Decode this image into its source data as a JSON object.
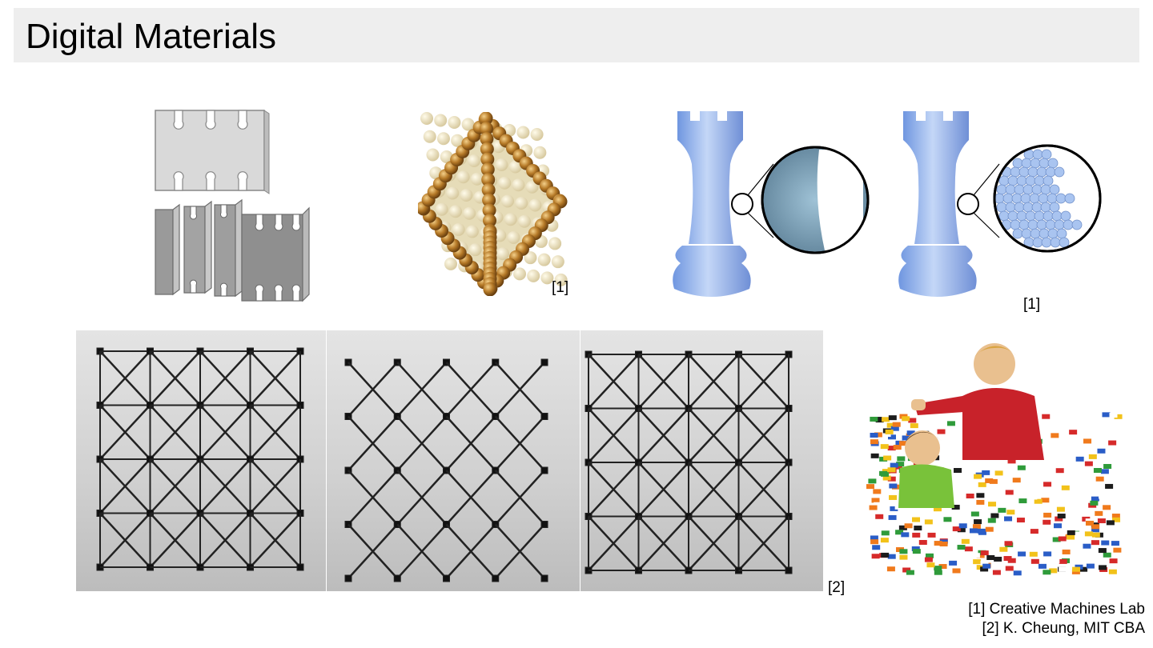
{
  "slide": {
    "title": "Digital Materials"
  },
  "figure_refs": {
    "octahedron": "[1]",
    "rook": "[1]",
    "lattice": "[2]"
  },
  "credits": [
    "[1] Creative Machines Lab",
    "[2] K. Cheung, MIT CBA"
  ],
  "colors": {
    "title_bar": "#eeeeee",
    "bead_gold": "#b67a28",
    "bead_cream": "#efe6c8",
    "rook_blue": "#8fb3ea",
    "plate_gray": "#9d9d9d",
    "lattice_bg": "#d6d6d6"
  }
}
